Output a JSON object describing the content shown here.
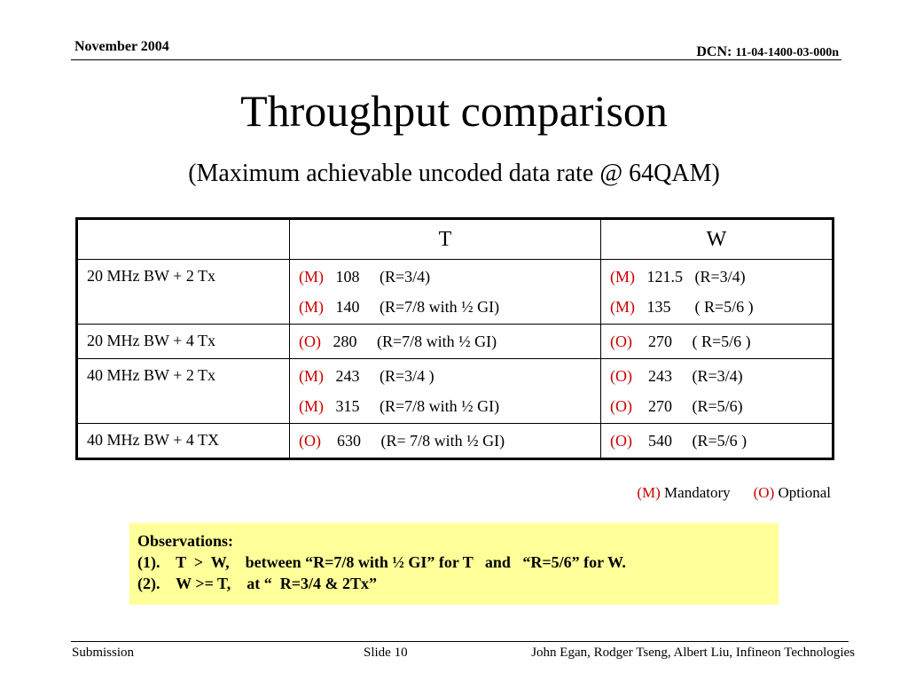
{
  "header": {
    "date": "November 2004",
    "dcn_label": "DCN: ",
    "dcn_number": "11-04-1400-03-000n"
  },
  "title": "Throughput comparison",
  "subtitle": "(Maximum achievable uncoded data rate @ 64QAM)",
  "table": {
    "columns": [
      "",
      "T",
      "W"
    ],
    "rows": [
      {
        "label": "20 MHz BW + 2 Tx",
        "t": [
          {
            "tag": "(M)",
            "text": "   108     (R=3/4)"
          },
          {
            "tag": "(M)",
            "text": "   140     (R=7/8 with ½ GI)"
          }
        ],
        "w": [
          {
            "tag": "(M)",
            "text": "   121.5   (R=3/4)"
          },
          {
            "tag": "(M)",
            "text": "   135      ( R=5/6 )"
          }
        ]
      },
      {
        "label": "20 MHz BW + 4 Tx",
        "t": [
          {
            "tag": "(O)",
            "text": "   280     (R=7/8 with ½ GI)"
          }
        ],
        "w": [
          {
            "tag": "(O)",
            "text": "    270     ( R=5/6 )"
          }
        ]
      },
      {
        "label": "40 MHz BW + 2 Tx",
        "t": [
          {
            "tag": "(M)",
            "text": "   243     (R=3/4 )"
          },
          {
            "tag": "(M)",
            "text": "   315     (R=7/8 with ½ GI)"
          }
        ],
        "w": [
          {
            "tag": "(O)",
            "text": "    243     (R=3/4)"
          },
          {
            "tag": "(O)",
            "text": "    270     (R=5/6)"
          }
        ]
      },
      {
        "label": "40 MHz BW + 4 TX",
        "t": [
          {
            "tag": "(O)",
            "text": "    630     (R= 7/8 with ½ GI)"
          }
        ],
        "w": [
          {
            "tag": "(O)",
            "text": "    540     (R=5/6 )"
          }
        ]
      }
    ]
  },
  "legend": {
    "mandatory_tag": "(M)",
    "mandatory_text": " Mandatory",
    "optional_tag": "(O)",
    "optional_text": "  Optional"
  },
  "observations": {
    "heading": "Observations:",
    "lines": [
      "(1).    T  >  W,    between “R=7/8 with ½ GI” for T   and   “R=5/6” for W.",
      "(2).    W >= T,    at “  R=3/4 & 2Tx”"
    ]
  },
  "footer": {
    "left": "Submission",
    "middle": "Slide 10",
    "right": "John Egan, Rodger Tseng, Albert Liu, Infineon Technologies"
  },
  "colors": {
    "tag_red": "#cc0000",
    "observation_bg": "#ffff99"
  }
}
